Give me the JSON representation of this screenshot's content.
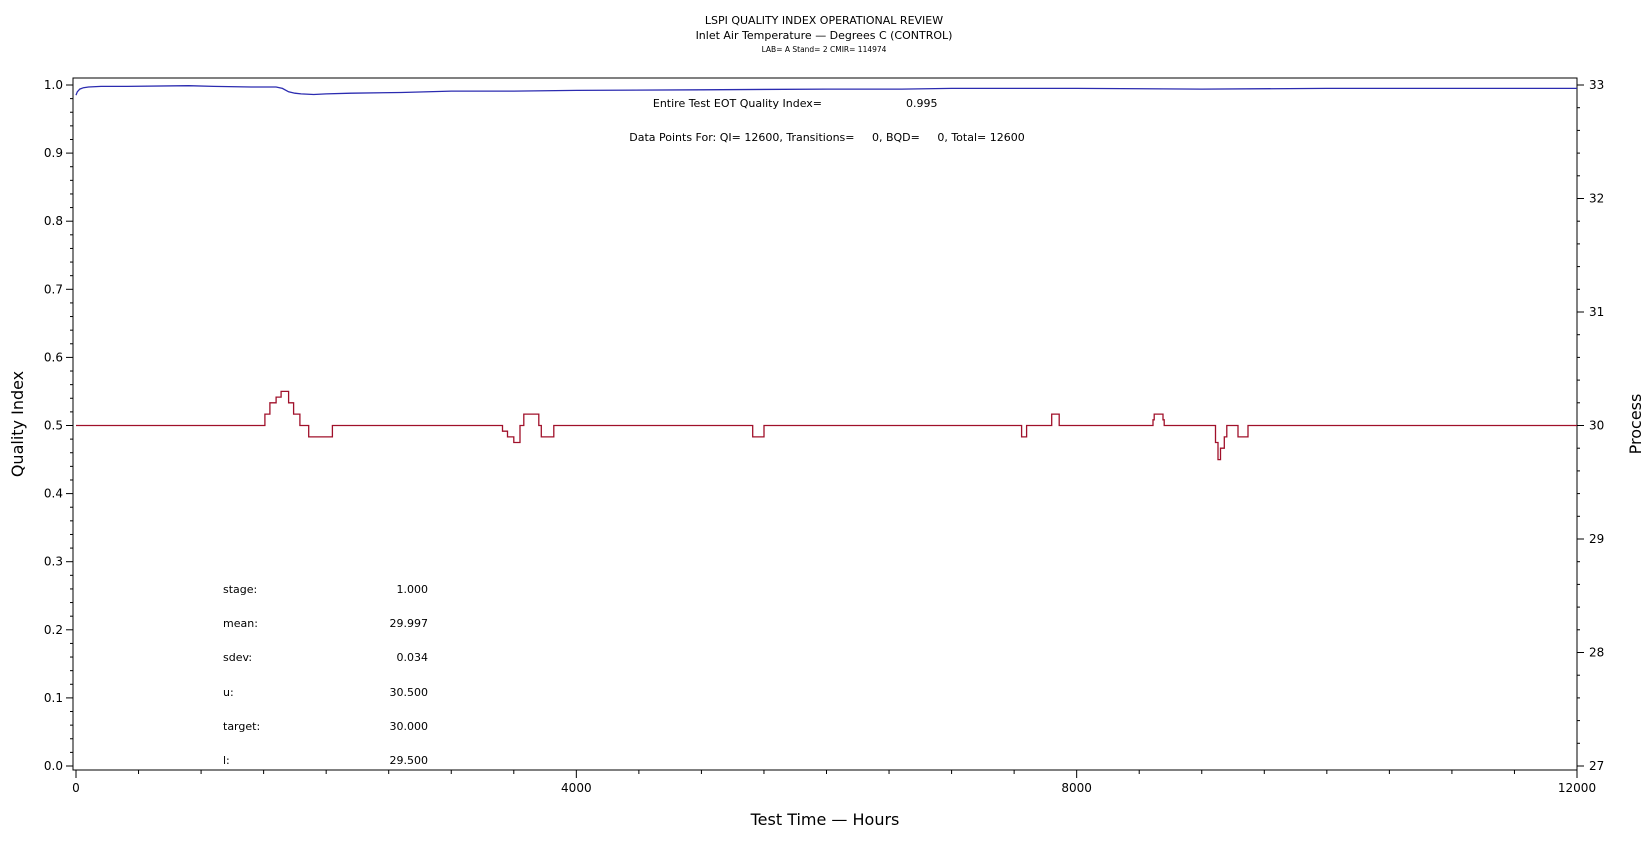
{
  "chart_data": {
    "type": "line",
    "title": "LSPI QUALITY INDEX OPERATIONAL REVIEW",
    "subtitle": "Inlet Air Temperature — Degrees C (CONTROL)",
    "subsubtitle": "LAB= A Stand= 2 CMIR= 114974",
    "xlabel": "Test Time — Hours",
    "ylabel_left": "Quality Index",
    "ylabel_right": "Process",
    "xlim": [
      0,
      12000
    ],
    "ylim_left": [
      0,
      1.0
    ],
    "ylim_right": [
      27,
      33
    ],
    "x_ticks": [
      "0",
      "4000",
      "8000",
      "12000"
    ],
    "y_left_ticks": [
      "0.0",
      "0.1",
      "0.2",
      "0.3",
      "0.4",
      "0.5",
      "0.6",
      "0.7",
      "0.8",
      "0.9",
      "1.0"
    ],
    "y_right_ticks": [
      "27",
      "28",
      "29",
      "30",
      "31",
      "32",
      "33"
    ],
    "annotations": {
      "eot_label": "Entire Test EOT Quality Index=",
      "eot_value": "0.995",
      "datapoints": "Data Points For: QI= 12600, Transitions=     0, BQD=     0, Total= 12600"
    },
    "stats": [
      {
        "label": "stage:",
        "value": "1.000"
      },
      {
        "label": "mean:",
        "value": "29.997"
      },
      {
        "label": "sdev:",
        "value": "0.034"
      },
      {
        "label": "u:",
        "value": "30.500"
      },
      {
        "label": "target:",
        "value": "30.000"
      },
      {
        "label": "l:",
        "value": "29.500"
      }
    ],
    "series": [
      {
        "axis": "left",
        "color": "#2b2bb0",
        "x": [
          0,
          10,
          30,
          60,
          100,
          200,
          400,
          900,
          1100,
          1400,
          1600,
          1650,
          1700,
          1750,
          1800,
          1900,
          2000,
          2200,
          2600,
          3000,
          3500,
          4000,
          5000,
          6000,
          6600,
          7000,
          8000,
          9000,
          10000,
          11000,
          12000
        ],
        "y": [
          0.985,
          0.99,
          0.994,
          0.996,
          0.997,
          0.998,
          0.998,
          0.999,
          0.998,
          0.997,
          0.997,
          0.995,
          0.99,
          0.988,
          0.987,
          0.986,
          0.987,
          0.988,
          0.989,
          0.991,
          0.991,
          0.992,
          0.993,
          0.994,
          0.994,
          0.995,
          0.995,
          0.994,
          0.995,
          0.995,
          0.995
        ]
      },
      {
        "axis": "right",
        "color": "#a0102a",
        "x": [
          0,
          1500,
          1510,
          1540,
          1550,
          1580,
          1600,
          1620,
          1640,
          1660,
          1700,
          1720,
          1740,
          1760,
          1790,
          1810,
          1860,
          1880,
          2000,
          2050,
          3400,
          3410,
          3430,
          3450,
          3480,
          3500,
          3520,
          3550,
          3580,
          3600,
          3700,
          3720,
          3800,
          3820,
          5400,
          5410,
          5480,
          5500,
          7550,
          7560,
          7590,
          7600,
          7790,
          7800,
          7840,
          7860,
          8600,
          8610,
          8620,
          8640,
          8660,
          8690,
          8700,
          8720,
          9100,
          9110,
          9130,
          9150,
          9180,
          9200,
          9260,
          9290,
          9350,
          9370,
          9420,
          9440,
          12000
        ],
        "y": [
          30,
          30,
          30.1,
          30.1,
          30.2,
          30.2,
          30.25,
          30.25,
          30.3,
          30.3,
          30.2,
          30.2,
          30.1,
          30.1,
          30,
          30,
          29.9,
          29.9,
          29.9,
          30,
          30,
          29.95,
          29.95,
          29.9,
          29.9,
          29.85,
          29.85,
          30,
          30.1,
          30.1,
          30,
          29.9,
          29.9,
          30,
          30,
          29.9,
          29.9,
          30,
          30,
          29.9,
          29.9,
          30,
          30,
          30.1,
          30.1,
          30,
          30,
          30.05,
          30.1,
          30.1,
          30.1,
          30.05,
          30,
          30,
          30,
          29.85,
          29.7,
          29.8,
          29.9,
          30,
          30,
          29.9,
          29.9,
          30,
          30,
          30,
          30
        ]
      }
    ]
  }
}
